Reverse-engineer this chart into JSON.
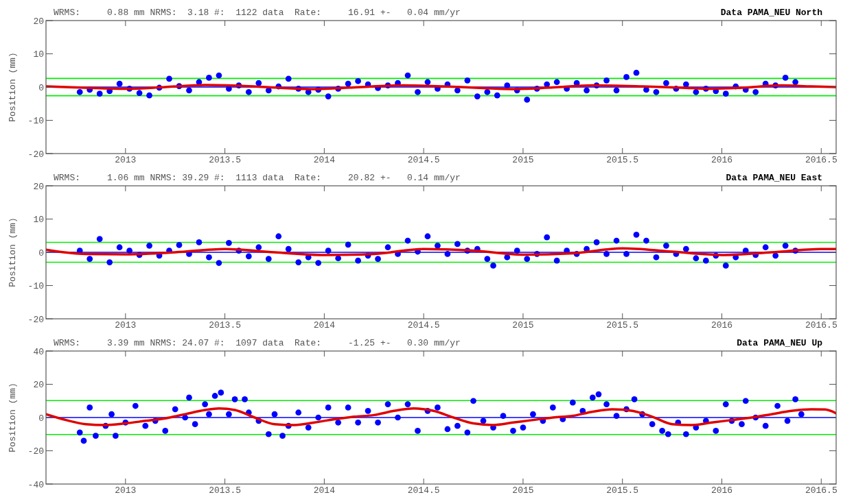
{
  "chart_data": [
    {
      "type": "scatter",
      "title": "Data PAMA_NEU North",
      "subtitle": "WRMS:     0.88 mm NRMS:  3.18 #:  1122 data  Rate:     16.91 +-   0.04 mm/yr",
      "ylabel": "Position (mm)",
      "xlim": [
        2012.6,
        2016.575
      ],
      "xticks": [
        2013,
        2013.5,
        2014,
        2014.5,
        2015,
        2015.5,
        2016,
        2016.5
      ],
      "ylim": [
        -20,
        20
      ],
      "yticks": [
        -20,
        -10,
        0,
        10,
        20
      ],
      "ref_lines": [
        {
          "axis": "y",
          "value": 0,
          "color": "#0000ff"
        },
        {
          "axis": "y",
          "value": 2.6,
          "color": "#00ee00"
        },
        {
          "axis": "y",
          "value": -2.6,
          "color": "#00ee00"
        }
      ],
      "series": [
        {
          "marker": "circle",
          "color": "#0000ff",
          "x": [
            2012.77,
            2012.82,
            2012.87,
            2012.92,
            2012.97,
            2013.02,
            2013.07,
            2013.12,
            2013.17,
            2013.22,
            2013.27,
            2013.32,
            2013.37,
            2013.42,
            2013.47,
            2013.52,
            2013.57,
            2013.62,
            2013.67,
            2013.72,
            2013.77,
            2013.82,
            2013.87,
            2013.92,
            2013.97,
            2014.02,
            2014.07,
            2014.12,
            2014.17,
            2014.22,
            2014.27,
            2014.32,
            2014.37,
            2014.42,
            2014.47,
            2014.52,
            2014.57,
            2014.62,
            2014.67,
            2014.72,
            2014.77,
            2014.82,
            2014.87,
            2014.92,
            2014.97,
            2015.02,
            2015.07,
            2015.12,
            2015.17,
            2015.22,
            2015.27,
            2015.32,
            2015.37,
            2015.42,
            2015.47,
            2015.52,
            2015.57,
            2015.62,
            2015.67,
            2015.72,
            2015.77,
            2015.82,
            2015.87,
            2015.92,
            2015.97,
            2016.02,
            2016.07,
            2016.12,
            2016.17,
            2016.22,
            2016.27,
            2016.32,
            2016.37
          ],
          "values": [
            -1.5,
            -0.8,
            -2.0,
            -1.2,
            1.0,
            -0.5,
            -1.8,
            -2.5,
            -0.2,
            2.5,
            0.3,
            -1.0,
            1.5,
            2.8,
            3.5,
            -0.5,
            0.5,
            -1.5,
            1.2,
            -1.0,
            0.2,
            2.5,
            -0.5,
            -1.5,
            -0.8,
            -2.8,
            -0.5,
            1.0,
            1.8,
            0.8,
            -0.3,
            0.5,
            1.2,
            3.5,
            -1.5,
            1.5,
            -0.5,
            0.8,
            -1.0,
            2.0,
            -2.8,
            -1.5,
            -2.5,
            0.5,
            -1.0,
            -3.8,
            -0.5,
            0.8,
            1.5,
            -0.5,
            1.2,
            -1.0,
            0.5,
            2.0,
            -1.0,
            3.0,
            4.3,
            -0.8,
            -1.5,
            1.2,
            -0.5,
            0.8,
            -1.5,
            -0.5,
            -1.2,
            -2.0,
            0.2,
            -0.8,
            -1.5,
            1.0,
            0.5,
            2.8,
            1.5
          ]
        },
        {
          "type": "line",
          "color": "#e00000",
          "x": [
            2012.6,
            2012.8,
            2013.0,
            2013.2,
            2013.4,
            2013.6,
            2013.8,
            2013.95,
            2014.15,
            2014.4,
            2014.6,
            2014.8,
            2014.95,
            2015.15,
            2015.35,
            2015.6,
            2015.8,
            2015.95,
            2016.1,
            2016.3,
            2016.45,
            2016.575
          ],
          "values": [
            0.2,
            -0.2,
            -0.5,
            0,
            0.6,
            0.3,
            -0.3,
            -0.6,
            -0.1,
            0.5,
            0.2,
            -0.3,
            -0.6,
            -0.1,
            0.5,
            0.2,
            -0.2,
            -0.5,
            -0.2,
            0.5,
            0.2,
            0
          ]
        }
      ]
    },
    {
      "type": "scatter",
      "title": "Data PAMA_NEU East",
      "subtitle": "WRMS:     1.06 mm NRMS: 39.29 #:  1113 data  Rate:     20.82 +-   0.14 mm/yr",
      "ylabel": "Position (mm)",
      "xlim": [
        2012.6,
        2016.575
      ],
      "xticks": [
        2013,
        2013.5,
        2014,
        2014.5,
        2015,
        2015.5,
        2016,
        2016.5
      ],
      "ylim": [
        -20,
        20
      ],
      "yticks": [
        -20,
        -10,
        0,
        10,
        20
      ],
      "ref_lines": [
        {
          "axis": "y",
          "value": 0,
          "color": "#0000ff"
        },
        {
          "axis": "y",
          "value": 3.0,
          "color": "#00ee00"
        },
        {
          "axis": "y",
          "value": -3.0,
          "color": "#00ee00"
        }
      ],
      "series": [
        {
          "marker": "circle",
          "color": "#0000ff",
          "x": [
            2012.77,
            2012.82,
            2012.87,
            2012.92,
            2012.97,
            2013.02,
            2013.07,
            2013.12,
            2013.17,
            2013.22,
            2013.27,
            2013.32,
            2013.37,
            2013.42,
            2013.47,
            2013.52,
            2013.57,
            2013.62,
            2013.67,
            2013.72,
            2013.77,
            2013.82,
            2013.87,
            2013.92,
            2013.97,
            2014.02,
            2014.07,
            2014.12,
            2014.17,
            2014.22,
            2014.27,
            2014.32,
            2014.37,
            2014.42,
            2014.47,
            2014.52,
            2014.57,
            2014.62,
            2014.67,
            2014.72,
            2014.77,
            2014.82,
            2014.85,
            2014.92,
            2014.97,
            2015.02,
            2015.07,
            2015.12,
            2015.17,
            2015.22,
            2015.27,
            2015.32,
            2015.37,
            2015.42,
            2015.47,
            2015.52,
            2015.57,
            2015.62,
            2015.67,
            2015.72,
            2015.77,
            2015.82,
            2015.87,
            2015.92,
            2015.97,
            2016.02,
            2016.07,
            2016.12,
            2016.17,
            2016.22,
            2016.27,
            2016.32,
            2016.37
          ],
          "values": [
            0.5,
            -2.0,
            4.0,
            -3.0,
            1.5,
            0.5,
            -0.8,
            2.0,
            -1.0,
            0.5,
            2.2,
            -0.5,
            3.0,
            -1.5,
            -3.2,
            2.8,
            0.5,
            -1.2,
            1.5,
            -2.0,
            4.8,
            1.0,
            -3.0,
            -1.5,
            -3.2,
            0.5,
            -1.8,
            2.3,
            -2.5,
            -1.0,
            -2.0,
            1.5,
            -0.5,
            3.5,
            0.2,
            4.8,
            2.0,
            -0.5,
            2.5,
            0.5,
            1.0,
            -2.0,
            -4.0,
            -1.5,
            0.5,
            -2.0,
            -0.5,
            4.5,
            -2.5,
            0.5,
            -0.5,
            1.0,
            3.0,
            -0.5,
            3.5,
            -0.5,
            5.3,
            3.5,
            -1.5,
            2.0,
            -0.5,
            1.0,
            -1.8,
            -2.5,
            -1.0,
            -4.0,
            -1.5,
            0.5,
            -0.8,
            1.5,
            -1.0,
            2.0,
            0.5
          ]
        },
        {
          "type": "line",
          "color": "#e00000",
          "x": [
            2012.6,
            2012.8,
            2013.0,
            2013.25,
            2013.5,
            2013.75,
            2014.0,
            2014.25,
            2014.5,
            2014.75,
            2015.0,
            2015.25,
            2015.5,
            2015.75,
            2016.0,
            2016.25,
            2016.5,
            2016.575
          ],
          "values": [
            0.8,
            -0.5,
            -0.6,
            0,
            1.0,
            0,
            -0.8,
            -0.5,
            1.0,
            0.5,
            -0.7,
            -0.3,
            1.2,
            0.2,
            -0.8,
            0,
            1.0,
            1.0
          ]
        }
      ]
    },
    {
      "type": "scatter",
      "title": "Data PAMA_NEU Up",
      "subtitle": "WRMS:     3.39 mm NRMS: 24.07 #:  1097 data  Rate:     -1.25 +-   0.30 mm/yr",
      "ylabel": "Position (mm)",
      "xlim": [
        2012.6,
        2016.575
      ],
      "xticks": [
        2013,
        2013.5,
        2014,
        2014.5,
        2015,
        2015.5,
        2016,
        2016.5
      ],
      "ylim": [
        -40,
        40
      ],
      "yticks": [
        -40,
        -20,
        0,
        20,
        40
      ],
      "ref_lines": [
        {
          "axis": "y",
          "value": 0,
          "color": "#0000ff"
        },
        {
          "axis": "y",
          "value": 10.2,
          "color": "#00ee00"
        },
        {
          "axis": "y",
          "value": -10.2,
          "color": "#00ee00"
        }
      ],
      "series": [
        {
          "marker": "circle",
          "color": "#0000ff",
          "x": [
            2012.77,
            2012.79,
            2012.82,
            2012.85,
            2012.9,
            2012.93,
            2012.95,
            2013.0,
            2013.05,
            2013.1,
            2013.15,
            2013.2,
            2013.25,
            2013.3,
            2013.32,
            2013.35,
            2013.4,
            2013.42,
            2013.45,
            2013.48,
            2013.52,
            2013.55,
            2013.6,
            2013.62,
            2013.67,
            2013.72,
            2013.75,
            2013.79,
            2013.82,
            2013.87,
            2013.92,
            2013.97,
            2014.02,
            2014.07,
            2014.12,
            2014.17,
            2014.22,
            2014.27,
            2014.32,
            2014.37,
            2014.42,
            2014.47,
            2014.52,
            2014.57,
            2014.62,
            2014.67,
            2014.72,
            2014.75,
            2014.8,
            2014.85,
            2014.9,
            2014.95,
            2015.0,
            2015.05,
            2015.1,
            2015.15,
            2015.2,
            2015.25,
            2015.3,
            2015.35,
            2015.38,
            2015.42,
            2015.47,
            2015.52,
            2015.56,
            2015.6,
            2015.65,
            2015.7,
            2015.73,
            2015.78,
            2015.82,
            2015.87,
            2015.92,
            2015.97,
            2016.02,
            2016.05,
            2016.1,
            2016.12,
            2016.17,
            2016.22,
            2016.28,
            2016.33,
            2016.37,
            2016.4
          ],
          "values": [
            -9,
            -14,
            6,
            -11,
            -5,
            2,
            -11,
            -3,
            7,
            -5,
            -2,
            -8,
            5,
            0,
            12,
            -4,
            8,
            2,
            13,
            15,
            2,
            11,
            11,
            3,
            -2,
            -10,
            2,
            -11,
            -5,
            3,
            -6,
            0,
            6,
            -3,
            6,
            -3,
            4,
            -3,
            8,
            0,
            8,
            -8,
            4,
            6,
            -7,
            -5,
            -9,
            10,
            -2,
            -6,
            1,
            -8,
            -6,
            2,
            -2,
            6,
            -1,
            9,
            4,
            12,
            14,
            8,
            1,
            5,
            11,
            2,
            -4,
            -8,
            -10,
            -3,
            -10,
            -6,
            -2,
            -8,
            8,
            -2,
            -4,
            10,
            0,
            -5,
            7,
            -2,
            11,
            2
          ]
        },
        {
          "type": "line",
          "color": "#e00000",
          "x": [
            2012.6,
            2012.7,
            2012.8,
            2012.9,
            2013.0,
            2013.1,
            2013.2,
            2013.3,
            2013.4,
            2013.47,
            2013.55,
            2013.65,
            2013.75,
            2013.85,
            2013.95,
            2014.05,
            2014.15,
            2014.25,
            2014.35,
            2014.45,
            2014.55,
            2014.65,
            2014.75,
            2014.85,
            2014.95,
            2015.05,
            2015.15,
            2015.25,
            2015.35,
            2015.45,
            2015.55,
            2015.65,
            2015.75,
            2015.85,
            2015.95,
            2016.05,
            2016.15,
            2016.25,
            2016.35,
            2016.45,
            2016.52,
            2016.575
          ],
          "values": [
            2,
            -1.5,
            -4,
            -4.5,
            -3.5,
            -2,
            -0.5,
            2,
            4.5,
            5.5,
            4.5,
            0,
            -4,
            -4.5,
            -3,
            -1,
            0.5,
            1.5,
            4,
            5.5,
            4,
            0,
            -3.5,
            -4.5,
            -3,
            -1.5,
            0,
            1,
            3.5,
            5,
            4,
            0.5,
            -4,
            -4.5,
            -3,
            -1.5,
            0,
            2,
            4,
            5,
            4.8,
            2.5
          ]
        }
      ]
    }
  ]
}
